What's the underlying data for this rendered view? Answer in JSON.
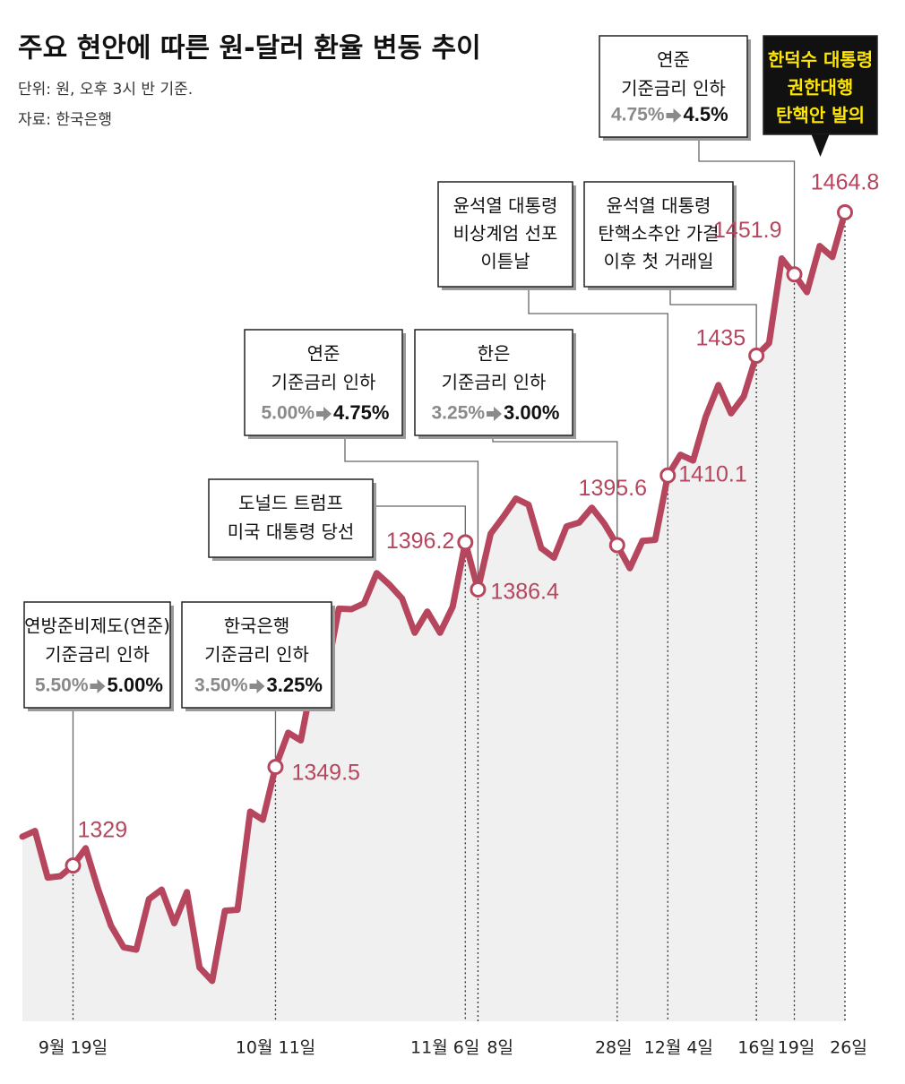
{
  "chart_data": {
    "type": "line",
    "title": "주요 현안에 따른 원-달러 환율 변동 추이",
    "subtitle": "단위: 원, 오후 3시 반 기준.",
    "source": "자료: 한국은행",
    "categories": [
      null,
      null,
      null,
      null,
      "9월 19일",
      null,
      null,
      null,
      null,
      null,
      null,
      null,
      null,
      null,
      null,
      null,
      null,
      null,
      null,
      null,
      "10월 11일",
      null,
      null,
      null,
      null,
      null,
      null,
      null,
      null,
      null,
      null,
      null,
      null,
      null,
      null,
      "11월 6일",
      "8일",
      null,
      null,
      null,
      null,
      null,
      null,
      null,
      null,
      null,
      null,
      "28일",
      null,
      null,
      null,
      "12월 4일",
      null,
      null,
      null,
      null,
      null,
      null,
      "16일",
      null,
      null,
      "19일",
      null,
      null,
      null,
      "26일"
    ],
    "series": [
      {
        "color": "#b5465e",
        "values": [
          1335.0,
          1336.2,
          1326.5,
          1326.8,
          1329,
          1332.6,
          1324.0,
          1316.5,
          1312.0,
          1311.5,
          1322.0,
          1324.0,
          1317.0,
          1323.5,
          1307.8,
          1305.0,
          1319.6,
          1319.8,
          1340.2,
          1338.5,
          1349.5,
          1356.6,
          1355.0,
          1368.5,
          1368.4,
          1382.4,
          1382.3,
          1383.5,
          1389.8,
          1387.4,
          1384.5,
          1377.4,
          1381.8,
          1377.4,
          1382.8,
          1396.2,
          1386.4,
          1398.0,
          1401.5,
          1405.3,
          1404.0,
          1395.0,
          1393.0,
          1399.5,
          1400.3,
          1403.4,
          1400.0,
          1395.6,
          1390.8,
          1396.5,
          1396.7,
          1410.1,
          1414.4,
          1413.2,
          1422.3,
          1428.9,
          1423.0,
          1426.5,
          1435,
          1437.6,
          1455.2,
          1451.9,
          1448.2,
          1457.8,
          1455.5,
          1464.8
        ]
      }
    ],
    "annotations": [
      {
        "lines": [
          "연방준비제도(연준)",
          "기준금리 인하"
        ],
        "from": "5.50%",
        "to": "5.00%"
      },
      {
        "lines": [
          "한국은행",
          "기준금리 인하"
        ],
        "from": "3.50%",
        "to": "3.25%"
      },
      {
        "lines": [
          "도널드 트럼프",
          "미국 대통령 당선"
        ]
      },
      {
        "lines": [
          "연준",
          "기준금리 인하"
        ],
        "from": "5.00%",
        "to": "4.75%"
      },
      {
        "lines": [
          "한은",
          "기준금리 인하"
        ],
        "from": "3.25%",
        "to": "3.00%"
      },
      {
        "lines": [
          "윤석열 대통령",
          "비상계엄 선포",
          "이튿날"
        ]
      },
      {
        "lines": [
          "윤석열 대통령",
          "탄핵소추안 가결",
          "이후 첫 거래일"
        ]
      },
      {
        "lines": [
          "연준",
          "기준금리 인하"
        ],
        "from": "4.75%",
        "to": "4.5%"
      },
      {
        "lines": [
          "한덕수 대통령",
          "권한대행",
          "탄핵안 발의"
        ]
      }
    ]
  }
}
